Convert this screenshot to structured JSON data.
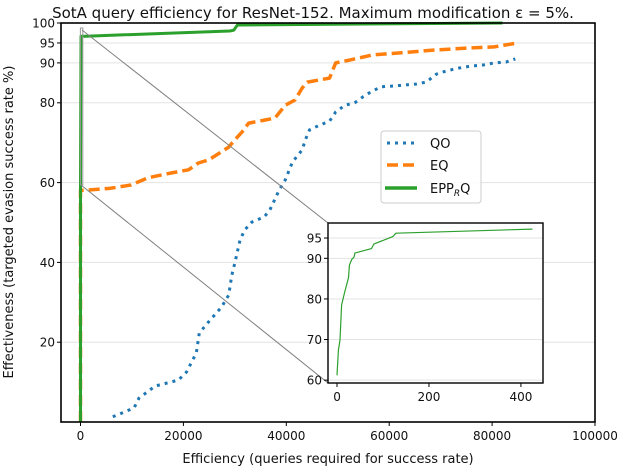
{
  "chart_data": [
    {
      "type": "line",
      "title": "SotA query efficiency for ResNet-152. Maximum modification ε = 5%.",
      "xlabel": "Efficiency (queries required for success rate)",
      "ylabel": "Effectiveness (targeted evasion success rate %)",
      "xlim": [
        -3790,
        100000
      ],
      "ylim": [
        0,
        100
      ],
      "xticks": [
        0,
        20000,
        40000,
        60000,
        80000,
        100000
      ],
      "xtick_labels": [
        "0",
        "20000",
        "40000",
        "60000",
        "80000",
        "100000"
      ],
      "yticks": [
        20,
        40,
        60,
        80,
        90,
        95,
        100
      ],
      "ytick_labels": [
        "20",
        "40",
        "60",
        "80",
        "90",
        "95",
        "100"
      ],
      "grid": "horizontal",
      "legend_position": "center-right",
      "series": [
        {
          "name": "QO",
          "legend_label": "QO",
          "color": "#1f77b4",
          "style": "dotted",
          "x": [
            6270,
            10390,
            11370,
            14500,
            19000,
            20600,
            22500,
            23100,
            24900,
            27400,
            28800,
            29400,
            30000,
            31000,
            31900,
            33300,
            35700,
            36800,
            38600,
            39800,
            41200,
            43100,
            43700,
            44500,
            46500,
            48400,
            49600,
            51400,
            53300,
            54900,
            56400,
            58400,
            60800,
            65300,
            67200,
            69200,
            71100,
            73500,
            75900,
            78400,
            80400,
            82700,
            84500
          ],
          "y": [
            1.3,
            3.5,
            6.0,
            9.0,
            10.5,
            12.5,
            17.3,
            22.3,
            25.1,
            28.8,
            31.8,
            36.8,
            39.8,
            45.6,
            48.1,
            50.1,
            51.4,
            53.1,
            58.1,
            60.7,
            65.2,
            68.2,
            70.7,
            73.2,
            74.4,
            75.4,
            77.7,
            79.4,
            80.0,
            81.5,
            82.7,
            84.0,
            84.2,
            84.7,
            85.2,
            87.2,
            88.0,
            88.7,
            89.2,
            89.5,
            90.0,
            90.2,
            91.0
          ]
        },
        {
          "name": "EQ",
          "legend_label": "EQ",
          "color": "#ff7f0e",
          "style": "dashed",
          "x": [
            0,
            0,
            1000,
            5900,
            9800,
            13100,
            17600,
            21000,
            22900,
            24900,
            27000,
            28800,
            30000,
            31400,
            32700,
            35900,
            37800,
            39800,
            41700,
            43100,
            44100,
            48400,
            49600,
            52300,
            56800,
            62100,
            68600,
            75100,
            80400,
            84900
          ],
          "y": [
            0,
            58.1,
            58.1,
            58.6,
            59.4,
            61.2,
            62.4,
            63.2,
            64.9,
            65.7,
            67.4,
            68.9,
            70.7,
            72.7,
            74.9,
            75.7,
            76.2,
            79.4,
            80.7,
            83.7,
            85.2,
            86.2,
            90.0,
            90.7,
            92.0,
            92.5,
            93.2,
            93.7,
            94.0,
            95.0
          ]
        },
        {
          "name": "EPP_RQ",
          "legend_label": "EPP",
          "legend_sub": "R",
          "legend_tail": "Q",
          "color": "#2ca02c",
          "style": "solid",
          "x": [
            0,
            0,
            100,
            1000,
            29000,
            29800,
            30500,
            82000
          ],
          "y": [
            0,
            61,
            96.7,
            96.7,
            98.0,
            98.2,
            99.5,
            100
          ]
        }
      ]
    },
    {
      "type": "line",
      "title": "",
      "xlim": [
        -19.6,
        448
      ],
      "ylim": [
        59.3,
        98.7
      ],
      "xticks": [
        0,
        200,
        400
      ],
      "xtick_labels": [
        "0",
        "200",
        "400"
      ],
      "yticks": [
        60,
        70,
        80,
        90,
        95
      ],
      "ytick_labels": [
        "60",
        "70",
        "80",
        "90",
        "95"
      ],
      "grid": "horizontal",
      "series": [
        {
          "name": "EPP_RQ",
          "color": "#2ca02c",
          "style": "solid",
          "x": [
            0,
            3,
            6.5,
            10,
            17,
            25,
            27,
            32,
            37,
            39,
            75,
            80,
            122,
            128,
            425
          ],
          "y": [
            61.2,
            67.4,
            69.9,
            78.5,
            81.8,
            85.2,
            88.3,
            89.7,
            90.3,
            91.3,
            92.4,
            93.5,
            95.4,
            96.2,
            97.2
          ]
        }
      ]
    }
  ]
}
